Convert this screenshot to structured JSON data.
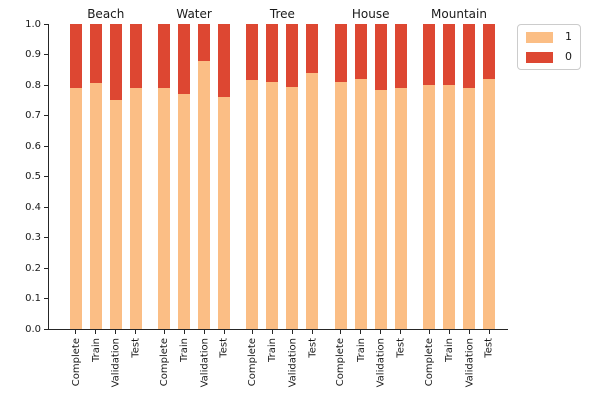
{
  "chart_data": {
    "type": "bar",
    "stacked": true,
    "orientation": "vertical",
    "title": "",
    "xlabel": "",
    "ylabel": "",
    "groups": [
      "Beach",
      "Water",
      "Tree",
      "House",
      "Mountain"
    ],
    "categories": [
      "Complete",
      "Train",
      "Validation",
      "Test"
    ],
    "series": [
      {
        "name": "1",
        "color": "#fbbe85",
        "values": [
          [
            0.79,
            0.805,
            0.75,
            0.79
          ],
          [
            0.79,
            0.77,
            0.88,
            0.76
          ],
          [
            0.815,
            0.81,
            0.795,
            0.84
          ],
          [
            0.81,
            0.82,
            0.785,
            0.79
          ],
          [
            0.8,
            0.8,
            0.79,
            0.82
          ]
        ]
      },
      {
        "name": "0",
        "color": "#dd4732",
        "values": [
          [
            0.21,
            0.195,
            0.25,
            0.21
          ],
          [
            0.21,
            0.23,
            0.12,
            0.24
          ],
          [
            0.185,
            0.19,
            0.205,
            0.16
          ],
          [
            0.19,
            0.18,
            0.215,
            0.21
          ],
          [
            0.2,
            0.2,
            0.21,
            0.18
          ]
        ]
      }
    ],
    "ylim": [
      0.0,
      1.0
    ],
    "yticks": [
      "0.0",
      "0.1",
      "0.2",
      "0.3",
      "0.4",
      "0.5",
      "0.6",
      "0.7",
      "0.8",
      "0.9",
      "1.0"
    ],
    "grid": false,
    "legend": {
      "position": "upper-right-outside",
      "entries": [
        {
          "label": "1",
          "color": "#fbbe85"
        },
        {
          "label": "0",
          "color": "#dd4732"
        }
      ]
    }
  },
  "colors": {
    "background": "#ffffff",
    "spine": "#262626",
    "text": "#1a1a1a",
    "legend_border": "#cccccc"
  }
}
